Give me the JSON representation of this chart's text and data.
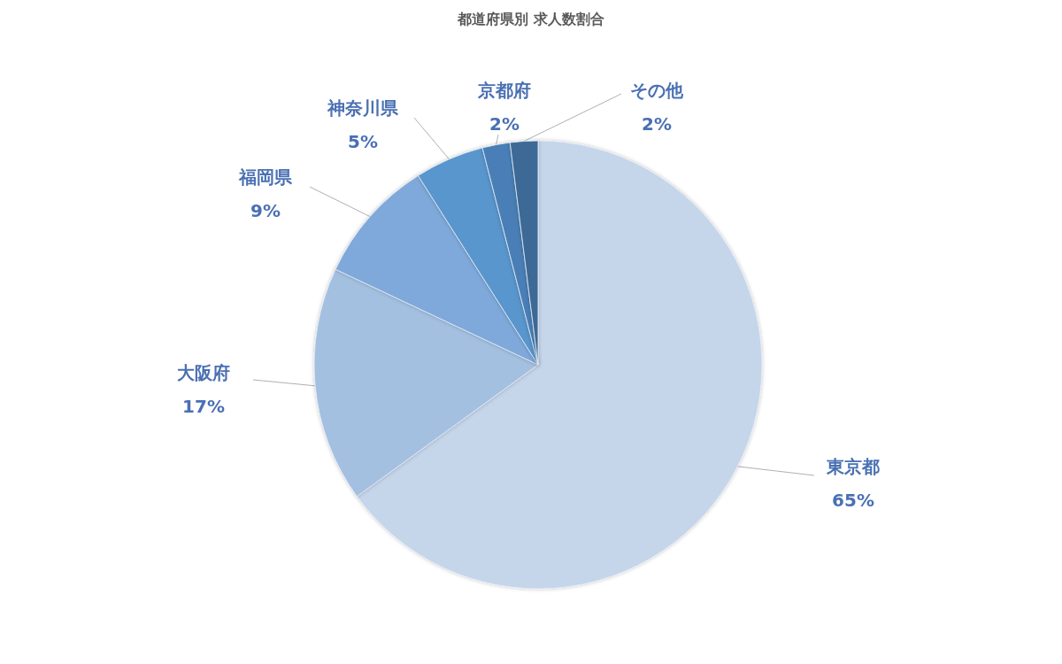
{
  "chart_data": {
    "type": "pie",
    "title": "都道府県別 求人数割合",
    "categories": [
      "東京都",
      "大阪府",
      "福岡県",
      "神奈川県",
      "京都府",
      "その他"
    ],
    "values": [
      65,
      17,
      9,
      5,
      2,
      2
    ],
    "colors": [
      "#c5d5ea",
      "#a3c0e1",
      "#7ea9da",
      "#5896cd",
      "#4a7fb6",
      "#3d6996"
    ],
    "value_labels": [
      "65%",
      "17%",
      "9%",
      "5%",
      "2%",
      "2%"
    ]
  }
}
